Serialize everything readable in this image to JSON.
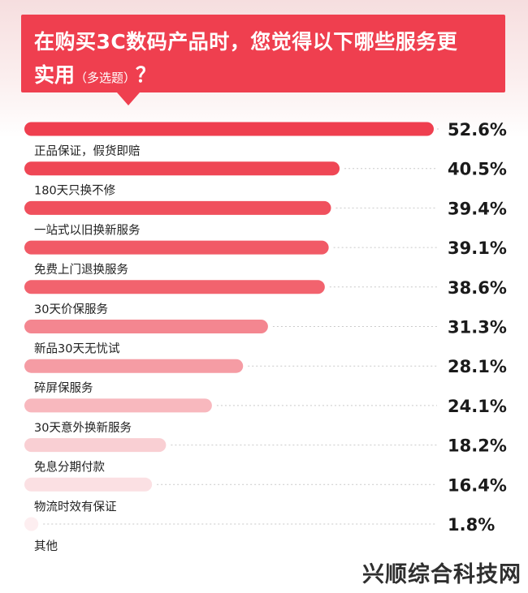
{
  "title": {
    "line1": "在购买3C数码产品时，您觉得以下哪些服务更",
    "line2_main": "实用",
    "line2_note": "（多选题）",
    "line2_end": "？"
  },
  "chart_data": {
    "type": "bar",
    "orientation": "horizontal",
    "categories": [
      "正品保证，假货即赔",
      "180天只换不修",
      "一站式以旧换新服务",
      "免费上门退换服务",
      "30天价保服务",
      "新品30天无忧试",
      "碎屏保服务",
      "30天意外换新服务",
      "免息分期付款",
      "物流时效有保证",
      "其他"
    ],
    "values": [
      52.6,
      40.5,
      39.4,
      39.1,
      38.6,
      31.3,
      28.1,
      24.1,
      18.2,
      16.4,
      1.8
    ],
    "value_labels": [
      "52.6%",
      "40.5%",
      "39.4%",
      "39.1%",
      "38.6%",
      "31.3%",
      "28.1%",
      "24.1%",
      "18.2%",
      "16.4%",
      "1.8%"
    ],
    "bar_colors": [
      "#ef3f4f",
      "#ef4755",
      "#f0505d",
      "#f15a66",
      "#f2636e",
      "#f48690",
      "#f59ca4",
      "#f8b8be",
      "#f9cfd3",
      "#fbe0e3",
      "#fdeef0"
    ],
    "xlim": [
      0,
      52.6
    ],
    "guide_lines": "dotted",
    "legend": "none"
  },
  "watermark": "兴顺综合科技网"
}
